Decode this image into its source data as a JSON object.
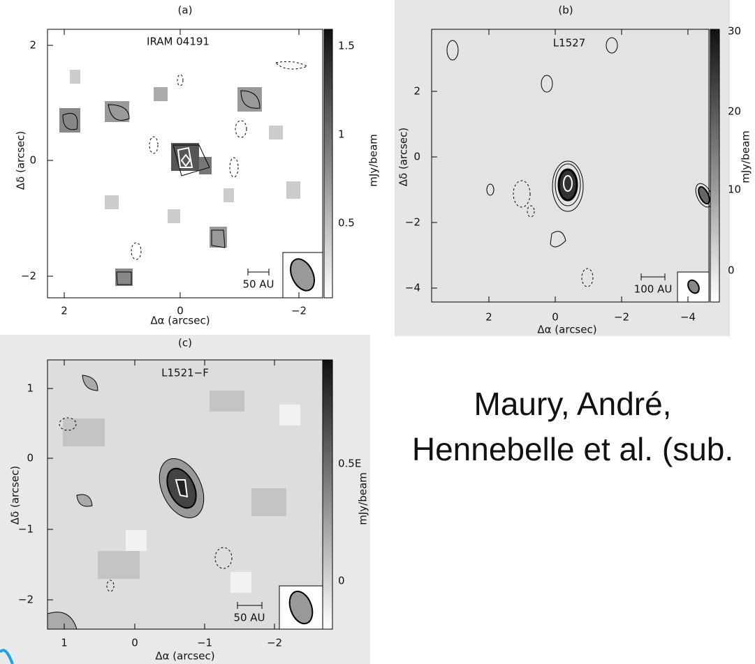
{
  "panels": [
    {
      "label": "(a)",
      "source": "IRAM 04191",
      "x_label": "Δα (arcsec)",
      "y_label": "Δδ (arcsec)",
      "colorbar_label": "mJy/beam",
      "x_ticks": [
        "2",
        "0",
        "−2"
      ],
      "y_ticks": [
        "2",
        "0",
        "−2"
      ],
      "colorbar_ticks": [
        "1.5",
        "1",
        "0.5"
      ],
      "scale_bar": "50 AU"
    },
    {
      "label": "(b)",
      "source": "L1527",
      "x_label": "Δα (arcsec)",
      "y_label": "Δδ (arcsec)",
      "colorbar_label": "mJy/beam",
      "x_ticks": [
        "2",
        "0",
        "−2",
        "−4"
      ],
      "y_ticks": [
        "2",
        "0",
        "−2",
        "−4"
      ],
      "colorbar_ticks": [
        "30",
        "20",
        "10",
        "0"
      ],
      "scale_bar": "100 AU"
    },
    {
      "label": "(c)",
      "source": "L1521−F",
      "x_label": "Δα (arcsec)",
      "y_label": "Δδ (arcsec)",
      "colorbar_label": "mJy/beam",
      "x_ticks": [
        "1",
        "0",
        "−1",
        "−2"
      ],
      "y_ticks": [
        "1",
        "0",
        "−1",
        "−2"
      ],
      "colorbar_ticks": [
        "0.5E",
        "0"
      ],
      "scale_bar": "50 AU"
    }
  ],
  "caption": [
    "Maury, André,",
    "Hennebelle et al. (sub."
  ]
}
